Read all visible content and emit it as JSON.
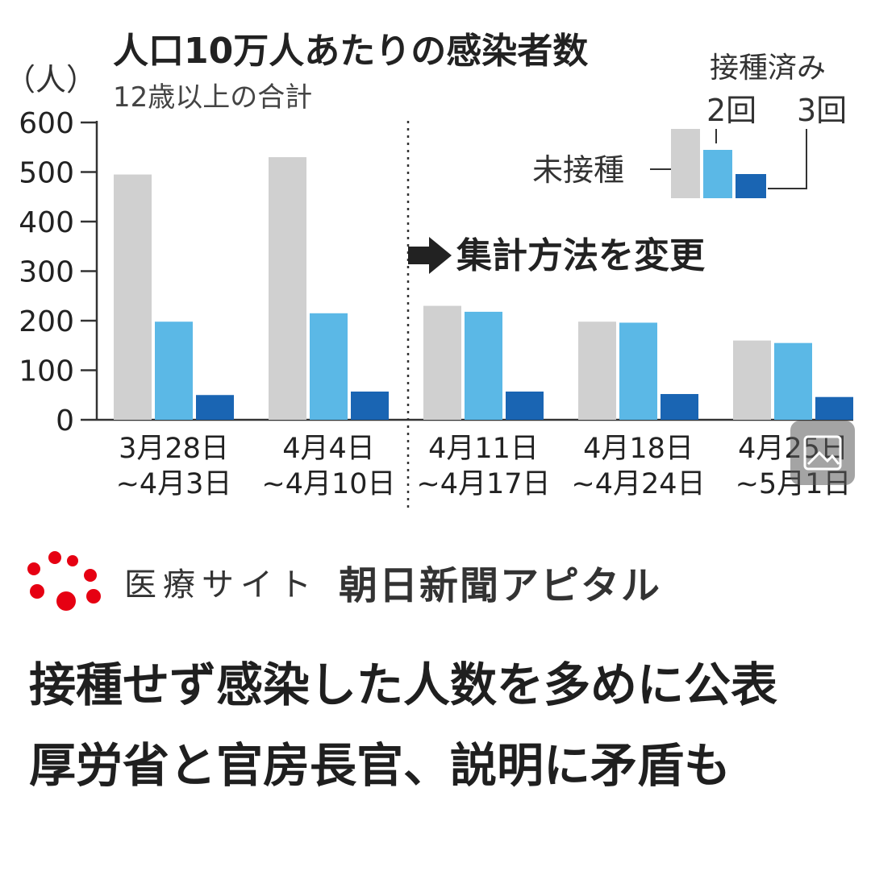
{
  "chart_data": {
    "type": "bar",
    "title": "人口10万人あたりの感染者数",
    "subtitle": "12歳以上の合計",
    "ylabel": "（人）",
    "ylim": [
      0,
      600
    ],
    "yticks": [
      0,
      100,
      200,
      300,
      400,
      500,
      600
    ],
    "categories": [
      [
        "3月28日",
        "~4月3日"
      ],
      [
        "4月4日",
        "~4月10日"
      ],
      [
        "4月11日",
        "~4月17日"
      ],
      [
        "4月18日",
        "~4月24日"
      ],
      [
        "4月25日",
        "~5月1日"
      ]
    ],
    "series": [
      {
        "name": "未接種",
        "color": "#d0d0d0",
        "values": [
          495,
          530,
          230,
          198,
          160
        ]
      },
      {
        "name": "2回",
        "color": "#5bb8e6",
        "values": [
          198,
          215,
          218,
          196,
          155
        ]
      },
      {
        "name": "3回",
        "color": "#1a65b3",
        "values": [
          50,
          57,
          57,
          52,
          46
        ]
      }
    ],
    "legend_heading": "接種済み",
    "annotation": "集計方法を変更",
    "grid": false,
    "legend_position": "top-right"
  },
  "brand": {
    "sub": "医療サイト",
    "main": "朝日新聞アピタル"
  },
  "headline": "接種せず感染した人数を多めに公表　厚労省と官房長官、説明に矛盾も"
}
